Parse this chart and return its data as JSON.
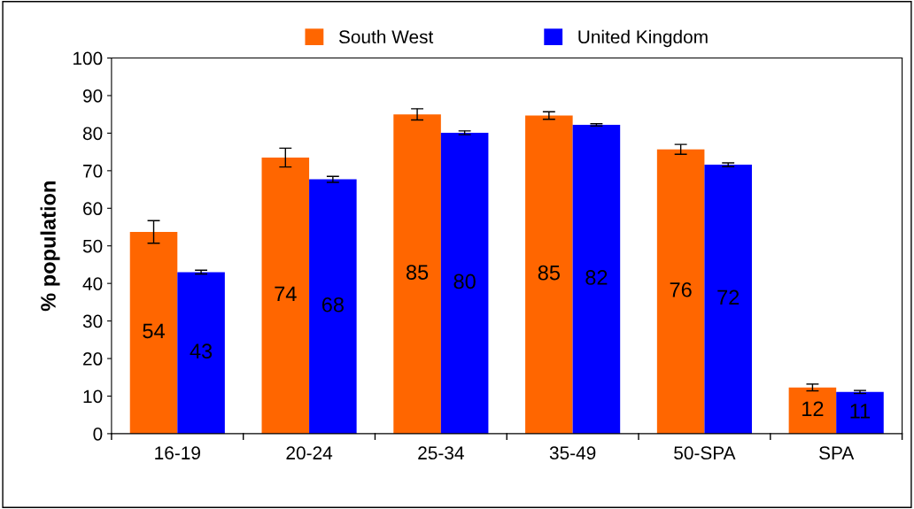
{
  "chart_data": {
    "type": "bar",
    "ylabel": "% population",
    "categories": [
      "16-19",
      "20-24",
      "25-34",
      "35-49",
      "50-SPA",
      "SPA"
    ],
    "series": [
      {
        "name": "South West",
        "color": "#ff6600",
        "values": [
          53.7,
          73.5,
          85,
          84.7,
          75.7,
          12.3
        ],
        "errors": [
          3,
          2.5,
          1.5,
          1,
          1.3,
          0.9
        ],
        "value_labels": [
          "54",
          "74",
          "85",
          "85",
          "76",
          "12"
        ]
      },
      {
        "name": "United Kingdom",
        "color": "#0000ff",
        "values": [
          43,
          67.7,
          80.1,
          82.2,
          71.6,
          11.1
        ],
        "errors": [
          0.5,
          0.8,
          0.5,
          0.3,
          0.5,
          0.4
        ],
        "value_labels": [
          "43",
          "68",
          "80",
          "82",
          "72",
          "11"
        ]
      }
    ],
    "ylim": [
      0,
      100
    ],
    "yticks": [
      0,
      10,
      20,
      30,
      40,
      50,
      60,
      70,
      80,
      90,
      100
    ],
    "legend": "top",
    "grid": false
  }
}
